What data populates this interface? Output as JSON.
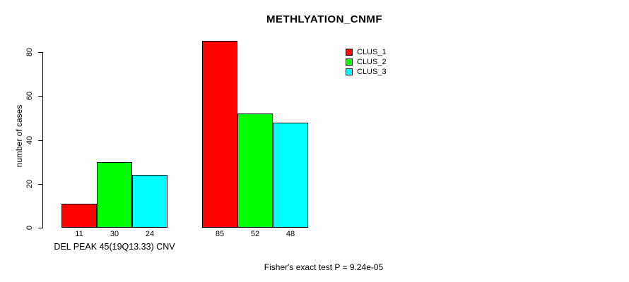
{
  "title": "METHLYATION_CNMF",
  "y_axis": {
    "label": "number of cases",
    "ticks": [
      0,
      20,
      40,
      60,
      80
    ]
  },
  "x_axis": {
    "label": "DEL PEAK 45(19Q13.33) CNV"
  },
  "footer": "Fisher's exact test P = 9.24e-05",
  "chart_data": {
    "type": "bar",
    "title": "METHLYATION_CNMF",
    "ylabel": "number of cases",
    "xlabel": "DEL PEAK 45(19Q13.33) CNV",
    "ylim": [
      0,
      85
    ],
    "yticks": [
      0,
      20,
      40,
      60,
      80
    ],
    "n_groups": 2,
    "series": [
      {
        "name": "CLUS_1",
        "color": "#ff0000",
        "values": [
          11,
          85
        ]
      },
      {
        "name": "CLUS_2",
        "color": "#00ff00",
        "values": [
          30,
          52
        ]
      },
      {
        "name": "CLUS_3",
        "color": "#00ffff",
        "values": [
          24,
          48
        ]
      }
    ],
    "bar_value_labels": [
      11,
      30,
      24,
      85,
      52,
      48
    ],
    "annotation": "Fisher's exact test P = 9.24e-05",
    "legend_position": "top-right-inside",
    "grid": false
  }
}
